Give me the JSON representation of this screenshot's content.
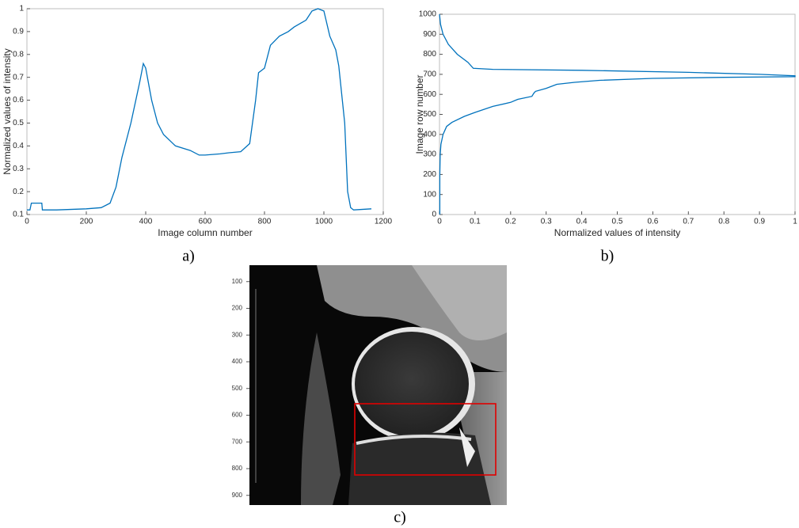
{
  "chart_data": [
    {
      "type": "line",
      "xlabel": "Image column number",
      "ylabel": "Normalized values of intensity",
      "label": "a)",
      "color": "#0072bd",
      "x": [
        0,
        10,
        15,
        50,
        52,
        100,
        200,
        250,
        280,
        300,
        320,
        350,
        380,
        392,
        400,
        420,
        440,
        460,
        500,
        550,
        580,
        600,
        650,
        680,
        720,
        750,
        770,
        780,
        800,
        820,
        850,
        880,
        900,
        940,
        960,
        980,
        1000,
        1020,
        1040,
        1050,
        1070,
        1080,
        1090,
        1100,
        1160
      ],
      "values": [
        0.12,
        0.12,
        0.15,
        0.15,
        0.12,
        0.12,
        0.125,
        0.13,
        0.15,
        0.22,
        0.35,
        0.5,
        0.68,
        0.76,
        0.74,
        0.6,
        0.5,
        0.45,
        0.4,
        0.38,
        0.36,
        0.36,
        0.365,
        0.37,
        0.375,
        0.41,
        0.6,
        0.72,
        0.74,
        0.84,
        0.88,
        0.9,
        0.92,
        0.95,
        0.99,
        1.0,
        0.99,
        0.88,
        0.82,
        0.75,
        0.5,
        0.2,
        0.13,
        0.12,
        0.125
      ],
      "xlim": [
        0,
        1200
      ],
      "ylim": [
        0.1,
        1
      ],
      "xticks": [
        0,
        200,
        400,
        600,
        800,
        1000,
        1200
      ],
      "yticks": [
        0.1,
        0.2,
        0.3,
        0.4,
        0.5,
        0.6,
        0.7,
        0.8,
        0.9,
        1
      ]
    },
    {
      "type": "line",
      "xlabel": "Normalized values of intensity",
      "ylabel": "Image row number",
      "label": "b)",
      "color": "#0072bd",
      "x": [
        0,
        0.003,
        0.01,
        0.025,
        0.05,
        0.08,
        0.095,
        0.15,
        0.4,
        0.7,
        0.9,
        1.0,
        1.0,
        0.8,
        0.6,
        0.45,
        0.38,
        0.33,
        0.3,
        0.27,
        0.265,
        0.26,
        0.22,
        0.2,
        0.15,
        0.1,
        0.07,
        0.035,
        0.02,
        0.01,
        0.004,
        0.002,
        0.001,
        0.001
      ],
      "values": [
        1000,
        950,
        900,
        850,
        800,
        760,
        730,
        725,
        720,
        710,
        700,
        693,
        688,
        685,
        680,
        670,
        660,
        650,
        630,
        615,
        605,
        590,
        575,
        560,
        540,
        510,
        490,
        460,
        440,
        400,
        350,
        300,
        200,
        0
      ],
      "xlim": [
        0,
        1
      ],
      "ylim": [
        0,
        1000
      ],
      "xticks": [
        0,
        0.1,
        0.2,
        0.3,
        0.4,
        0.5,
        0.6,
        0.7,
        0.8,
        0.9,
        1
      ],
      "yticks": [
        0,
        100,
        200,
        300,
        400,
        500,
        600,
        700,
        800,
        900,
        1000
      ]
    }
  ],
  "image": {
    "label": "c)",
    "yticks": [
      100,
      200,
      300,
      400,
      500,
      600,
      700,
      800,
      900
    ]
  }
}
